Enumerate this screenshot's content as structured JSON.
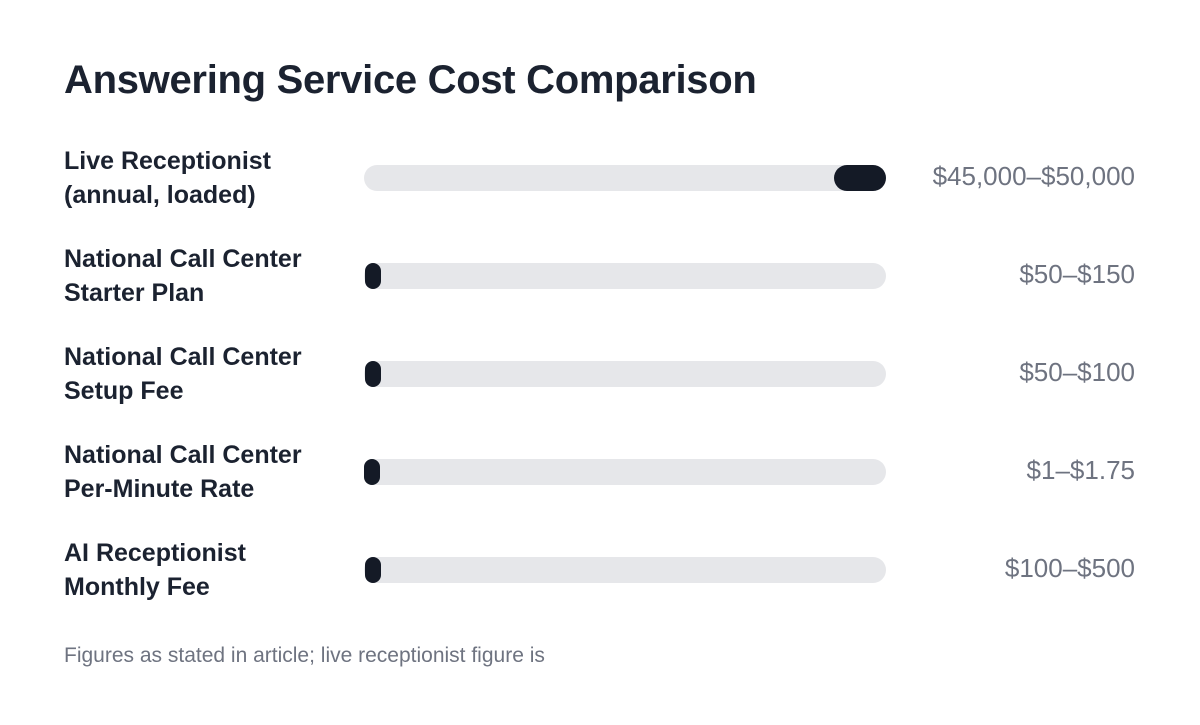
{
  "chart_data": {
    "type": "bar",
    "title": "Answering Service Cost Comparison",
    "categories": [
      [
        "Live Receptionist",
        "(annual, loaded)"
      ],
      [
        "National Call Center",
        "Starter Plan"
      ],
      [
        "National Call Center",
        "Setup Fee"
      ],
      [
        "National Call Center",
        "Per-Minute Rate"
      ],
      [
        "AI Receptionist",
        "Monthly Fee"
      ]
    ],
    "ranges": [
      [
        45000,
        50000
      ],
      [
        50,
        150
      ],
      [
        50,
        100
      ],
      [
        1,
        1.75
      ],
      [
        100,
        500
      ]
    ],
    "value_labels": [
      "$45,000–$50,000",
      "$50–$150",
      "$50–$100",
      "$1–$1.75",
      "$100–$500"
    ],
    "xlim": [
      0,
      50000
    ],
    "grid": false,
    "footnote": "Figures as stated in article; live receptionist figure is"
  },
  "colors": {
    "bar_fill": "#141a26",
    "track": "#e6e7ea",
    "title_text": "#1b2230",
    "value_text": "#6e7380"
  }
}
